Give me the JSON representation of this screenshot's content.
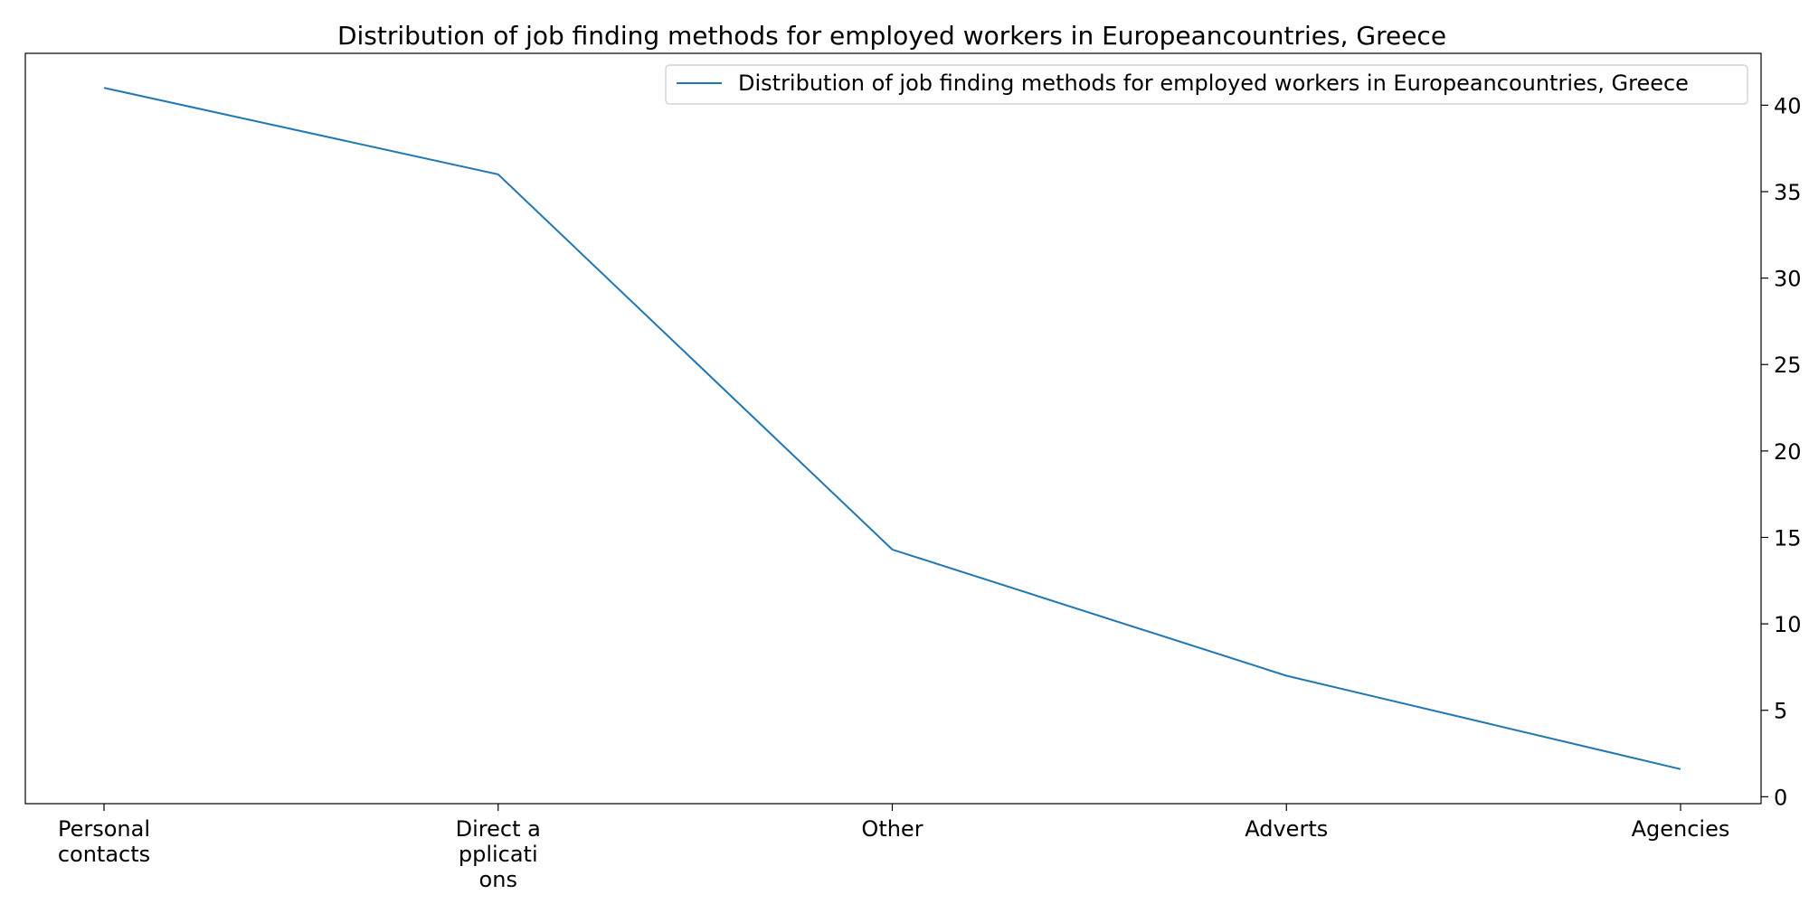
{
  "chart_data": {
    "type": "line",
    "title": "Distribution of job finding methods for employed workers in Europeancountries, Greece",
    "xlabel": "",
    "ylabel": "",
    "categories": [
      [
        "Personal",
        "contacts"
      ],
      [
        "Direct a",
        "pplicati",
        "ons"
      ],
      [
        "Other"
      ],
      [
        "Adverts"
      ],
      [
        "Agencies"
      ]
    ],
    "series": [
      {
        "name": "Distribution of job finding methods for employed workers in Europeancountries, Greece",
        "values": [
          41.0,
          36.0,
          14.3,
          7.0,
          1.6
        ],
        "color": "#1f77b4"
      }
    ],
    "yticks": [
      0,
      5,
      10,
      15,
      20,
      25,
      30,
      35,
      40
    ],
    "ylim": [
      -0.4,
      43.0
    ],
    "y_axis_side": "right",
    "grid": false,
    "legend_position": "top-right"
  }
}
